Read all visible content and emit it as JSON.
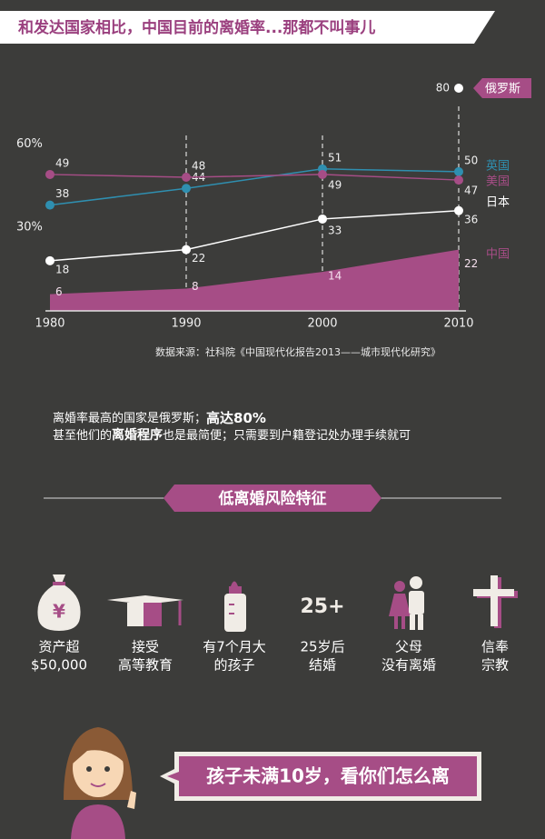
{
  "header": {
    "title": "和发达国家相比，中国目前的离婚率...那都不叫事儿"
  },
  "chart_data": {
    "type": "line",
    "x": [
      1980,
      1990,
      2000,
      2010
    ],
    "xlim": [
      1980,
      2010
    ],
    "xticks": [
      1980,
      1990,
      2000,
      2010
    ],
    "ylim": [
      0,
      80
    ],
    "yticks": [
      {
        "value": 30,
        "label": "30%"
      },
      {
        "value": 60,
        "label": "60%"
      }
    ],
    "series": [
      {
        "name": "俄罗斯",
        "color": "#ffffff",
        "values": [
          null,
          null,
          null,
          80
        ]
      },
      {
        "name": "英国",
        "color": "#2f8fb0",
        "values": [
          38,
          44,
          51,
          50
        ]
      },
      {
        "name": "美国",
        "color": "#a64d86",
        "values": [
          49,
          48,
          49,
          47
        ]
      },
      {
        "name": "日本",
        "color": "#ffffff",
        "values": [
          18,
          22,
          33,
          36
        ]
      },
      {
        "name": "中国",
        "color": "#a64d86",
        "type": "area",
        "values": [
          6,
          8,
          14,
          22
        ]
      }
    ],
    "source": "数据来源：社科院《中国现代化报告2013——城市现代化研究》"
  },
  "note": {
    "line1": [
      "离婚率最高的国家是俄罗斯；",
      "高达80%"
    ],
    "line2": [
      "甚至他们的",
      "离婚程序",
      "也是最简便；只需要到户籍登记处办理手续就可"
    ]
  },
  "section": {
    "title": "低离婚风险特征"
  },
  "features": [
    {
      "icon": "¥",
      "label": [
        "资产超",
        "$50,000"
      ]
    },
    {
      "label": [
        "接受",
        "高等教育"
      ]
    },
    {
      "label": [
        "有7个月大",
        "的孩子"
      ]
    },
    {
      "icon": "25+",
      "label": [
        "25岁后",
        "结婚"
      ]
    },
    {
      "label": [
        "父母",
        "没有离婚"
      ]
    },
    {
      "label": [
        "信奉",
        "宗教"
      ]
    }
  ],
  "bubble": {
    "text": "孩子未满10岁，看你们怎么离"
  }
}
